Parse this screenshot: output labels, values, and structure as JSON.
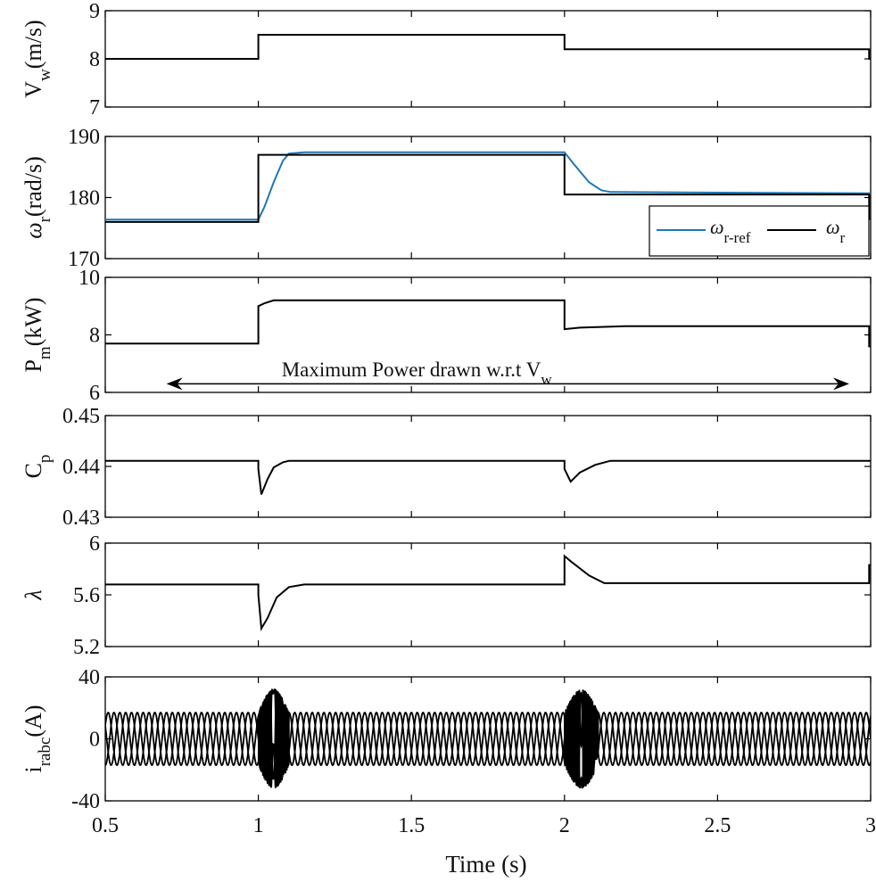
{
  "chart_data": [
    {
      "type": "line",
      "ylabel_main": "V",
      "ylabel_sub": "w",
      "ylabel_unit": "(m/s)",
      "xlim": [
        0.5,
        3
      ],
      "ylim": [
        7,
        9
      ],
      "yticks": [
        "7",
        "8",
        "9"
      ],
      "series": [
        {
          "color": "#000000",
          "x": [
            0.5,
            1.0,
            1.0,
            2.0,
            2.0,
            2.995,
            2.995,
            3.0
          ],
          "y": [
            8.0,
            8.0,
            8.5,
            8.5,
            8.2,
            8.2,
            8.0,
            8.0
          ]
        }
      ]
    },
    {
      "type": "line",
      "ylabel_main": "ω",
      "ylabel_sub": "r",
      "ylabel_unit": "(rad/s)",
      "xlim": [
        0.5,
        3
      ],
      "ylim": [
        170,
        190
      ],
      "yticks": [
        "170",
        "180",
        "190"
      ],
      "legend": {
        "placement": "bottom-right",
        "entries": [
          {
            "main": "ω",
            "sub": "r-ref",
            "color": "#1f77b4"
          },
          {
            "main": "ω",
            "sub": "r",
            "color": "#000000"
          }
        ]
      },
      "series": [
        {
          "color": "#1f77b4",
          "x": [
            0.5,
            1.0,
            1.02,
            1.05,
            1.08,
            1.1,
            1.15,
            2.0,
            2.03,
            2.08,
            2.12,
            2.15,
            2.5,
            3.0
          ],
          "y": [
            176.4,
            176.4,
            178.5,
            182.5,
            186.0,
            187.2,
            187.4,
            187.4,
            185.5,
            182.5,
            181.2,
            180.9,
            180.8,
            180.7
          ]
        },
        {
          "color": "#000000",
          "x": [
            0.5,
            1.0,
            1.0,
            2.0,
            2.0,
            2.995,
            2.995,
            3.0
          ],
          "y": [
            176.0,
            176.0,
            187.0,
            187.0,
            180.5,
            180.5,
            176.5,
            176.5
          ]
        }
      ]
    },
    {
      "type": "line",
      "ylabel_main": "P",
      "ylabel_sub": "m",
      "ylabel_unit": "(kW)",
      "xlim": [
        0.5,
        3
      ],
      "ylim": [
        6,
        10
      ],
      "yticks": [
        "6",
        "8",
        "10"
      ],
      "annotation": {
        "text_main": "Maximum Power drawn w.r.t V",
        "text_sub": "w",
        "x": 1.35,
        "y": 6.8,
        "arrow_from": 0.7,
        "arrow_to": 2.93,
        "arrow_y": 6.3
      },
      "series": [
        {
          "color": "#000000",
          "x": [
            0.5,
            1.0,
            1.0,
            1.02,
            1.05,
            1.1,
            2.0,
            2.0,
            2.05,
            2.2,
            2.995,
            2.995,
            3.0
          ],
          "y": [
            7.7,
            7.7,
            9.0,
            9.1,
            9.2,
            9.2,
            9.2,
            8.2,
            8.25,
            8.3,
            8.3,
            7.6,
            7.6
          ]
        }
      ]
    },
    {
      "type": "line",
      "ylabel_main": "C",
      "ylabel_sub": "p",
      "ylabel_unit": "",
      "xlim": [
        0.5,
        3
      ],
      "ylim": [
        0.43,
        0.45
      ],
      "yticks": [
        "0.43",
        "0.44",
        "0.45"
      ],
      "series": [
        {
          "color": "#000000",
          "x": [
            0.5,
            1.0,
            1.0,
            1.01,
            1.03,
            1.05,
            1.08,
            1.1,
            2.0,
            2.0,
            2.02,
            2.05,
            2.1,
            2.15,
            3.0
          ],
          "y": [
            0.4411,
            0.4411,
            0.4395,
            0.4345,
            0.4375,
            0.4398,
            0.4408,
            0.4411,
            0.4411,
            0.4395,
            0.437,
            0.4388,
            0.4403,
            0.4411,
            0.4411
          ]
        }
      ]
    },
    {
      "type": "line",
      "ylabel_main": "λ",
      "ylabel_sub": "",
      "ylabel_unit": "",
      "xlim": [
        0.5,
        3
      ],
      "ylim": [
        5.2,
        6
      ],
      "yticks": [
        "5.2",
        "5.6",
        "6"
      ],
      "series": [
        {
          "color": "#000000",
          "x": [
            0.5,
            1.0,
            1.0,
            1.01,
            1.03,
            1.06,
            1.1,
            1.15,
            2.0,
            2.0,
            2.02,
            2.08,
            2.13,
            2.995,
            2.995,
            3.0
          ],
          "y": [
            5.68,
            5.68,
            5.6,
            5.34,
            5.42,
            5.58,
            5.66,
            5.68,
            5.68,
            5.9,
            5.86,
            5.75,
            5.69,
            5.69,
            5.83,
            5.83
          ]
        }
      ]
    },
    {
      "type": "line",
      "ylabel_main": "i",
      "ylabel_sub": "rabc",
      "ylabel_unit": "(A)",
      "xlim": [
        0.5,
        3
      ],
      "ylim": [
        -40,
        40
      ],
      "yticks": [
        "-40",
        "0",
        "40"
      ],
      "xticks": [
        "0.5",
        "1",
        "1.5",
        "2",
        "2.5",
        "3"
      ],
      "xlabel": "Time (s)",
      "series": [
        {
          "color": "#000000",
          "name": "",
          "signal": "three-phase current",
          "amplitude": 17,
          "frequency_hz": 17.5,
          "phases_deg": [
            0,
            120,
            240
          ],
          "transients": [
            {
              "start": 1.0,
              "end": 1.1,
              "amplitude": 32
            },
            {
              "start": 2.0,
              "end": 2.11,
              "amplitude": 32
            }
          ]
        }
      ]
    }
  ]
}
